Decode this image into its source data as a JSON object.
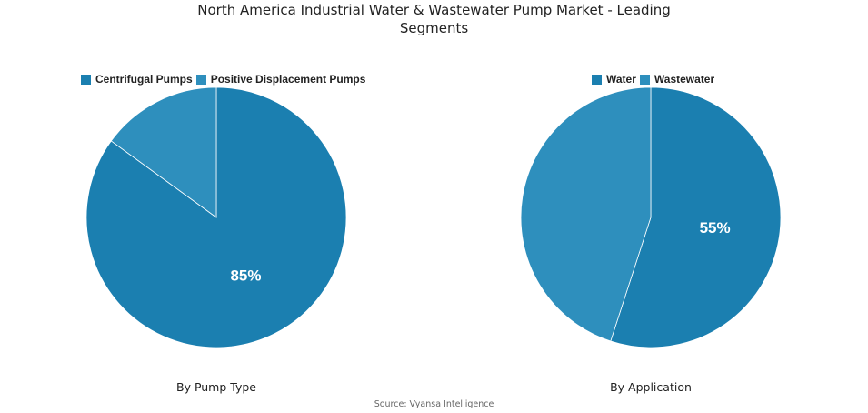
{
  "title_line1": "North America Industrial Water & Wastewater Pump Market - Leading",
  "title_line2": "Segments",
  "source": "Source: Vyansa Intelligence",
  "chart_data": [
    {
      "type": "pie",
      "subtitle": "By Pump Type",
      "categories": [
        "Centrifugal Pumps",
        "Positive Displacement Pumps"
      ],
      "values": [
        85,
        15
      ],
      "colors": [
        "#1B7FB0",
        "#2E8FBD"
      ],
      "labels": [
        "85%",
        ""
      ],
      "legend": "top"
    },
    {
      "type": "pie",
      "subtitle": "By Application",
      "categories": [
        "Water",
        "Wastewater"
      ],
      "values": [
        55,
        45
      ],
      "colors": [
        "#1B7FB0",
        "#2E8FBD"
      ],
      "labels": [
        "55%",
        ""
      ],
      "legend": "top"
    }
  ]
}
